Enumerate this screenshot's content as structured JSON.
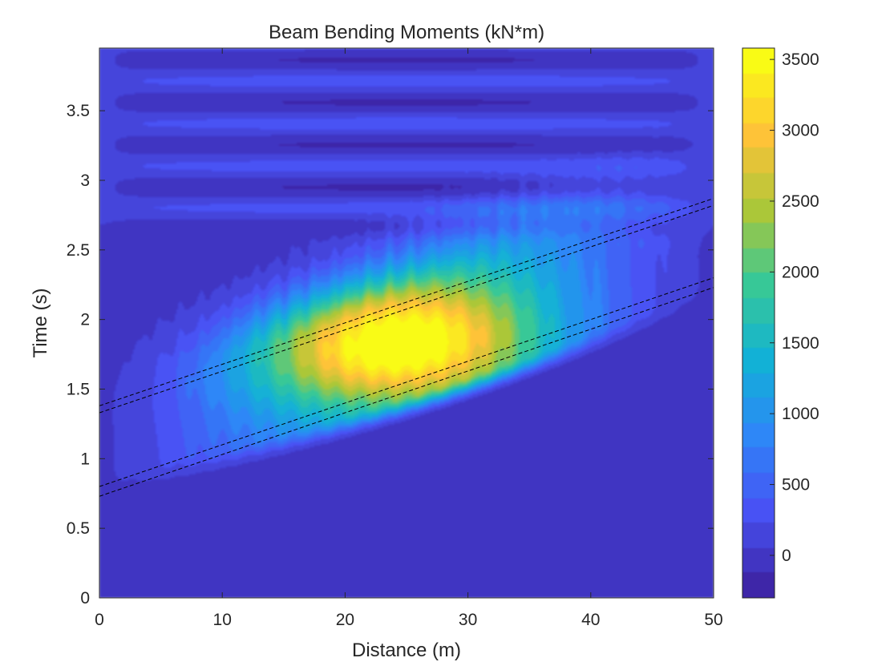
{
  "chart_data": {
    "type": "heatmap",
    "title": "Beam Bending Moments (kN*m)",
    "xlabel": "Distance (m)",
    "ylabel": "Time (s)",
    "xlim": [
      0,
      50
    ],
    "ylim": [
      0,
      3.95
    ],
    "x_ticks": [
      0,
      10,
      20,
      30,
      40,
      50
    ],
    "x_tick_labels": [
      "0",
      "10",
      "20",
      "30",
      "40",
      "50"
    ],
    "y_ticks": [
      0,
      0.5,
      1,
      1.5,
      2,
      2.5,
      3,
      3.5
    ],
    "y_tick_labels": [
      "0",
      "0.5",
      "1",
      "1.5",
      "2",
      "2.5",
      "3",
      "3.5"
    ],
    "colorbar": {
      "colormap": "parula",
      "range": [
        -300,
        3580
      ],
      "ticks": [
        0,
        500,
        1000,
        1500,
        2000,
        2500,
        3000,
        3500
      ],
      "tick_labels": [
        "0",
        "500",
        "1000",
        "1500",
        "2000",
        "2500",
        "3000",
        "3500"
      ]
    },
    "field_description": "moment peaks ~3500 kN*m near x=20-30 m, t=1.6-2.0 s; band of high moment bounded by t=0.75+0.030x (lower) and t=1.37+0.030x (upper); oscillating near-zero values after t=2.7 s",
    "peak": {
      "x": 25,
      "t": 1.8,
      "value": 3500
    },
    "overlay_lines": [
      {
        "style": "dashed",
        "color": "#000000",
        "x": [
          0,
          50
        ],
        "t": [
          1.38,
          2.87
        ]
      },
      {
        "style": "dashed",
        "color": "#000000",
        "x": [
          0,
          50
        ],
        "t": [
          1.33,
          2.82
        ]
      },
      {
        "style": "dashed",
        "color": "#000000",
        "x": [
          0,
          50
        ],
        "t": [
          0.8,
          2.3
        ]
      },
      {
        "style": "dashed",
        "color": "#000000",
        "x": [
          0,
          50
        ],
        "t": [
          0.73,
          2.23
        ]
      }
    ],
    "grid": false,
    "legend": "none"
  }
}
